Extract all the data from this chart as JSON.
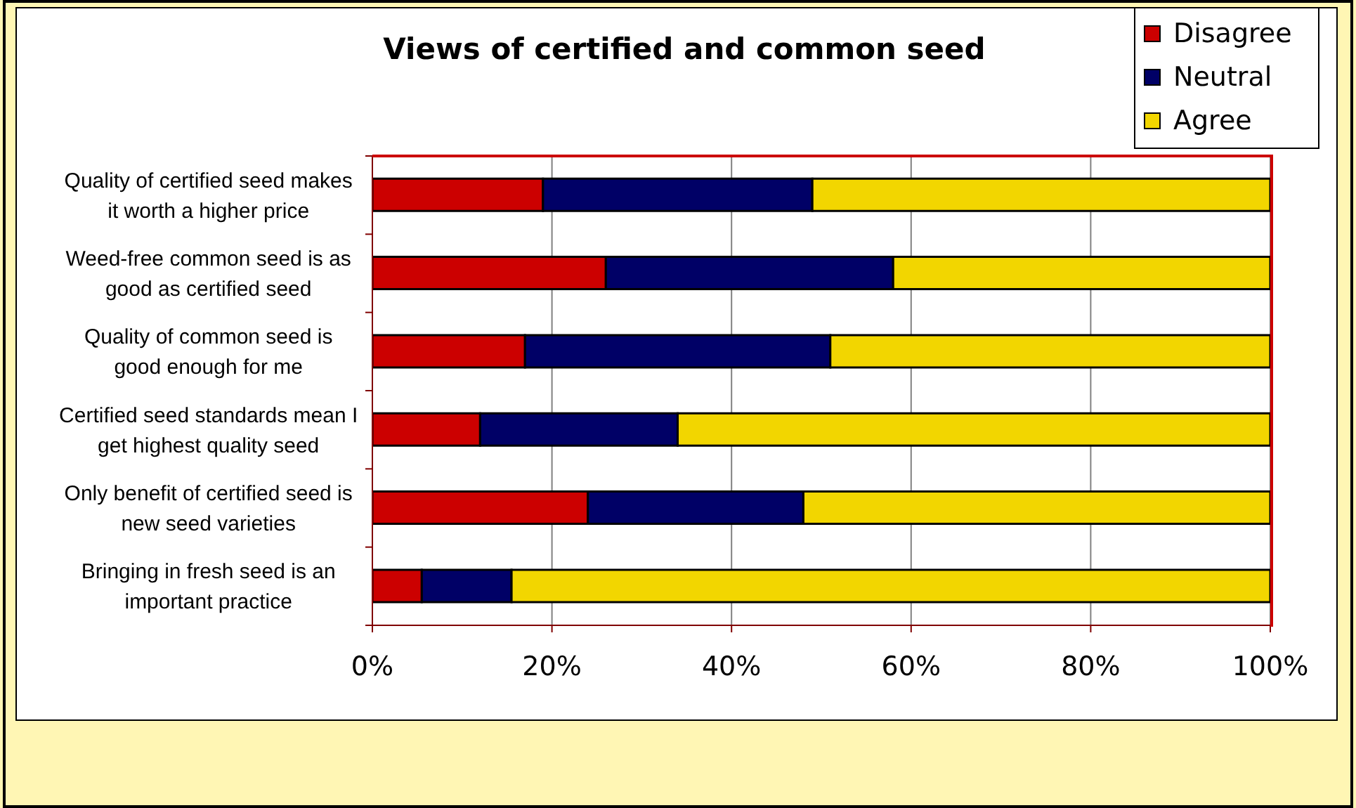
{
  "chart_data": {
    "type": "bar",
    "orientation": "horizontal",
    "stacked": true,
    "title": "Views of certified and common seed",
    "categories": [
      "Quality of certified seed makes it worth a higher price",
      "Weed-free common seed is as good as certified seed",
      "Quality of common seed is good enough for me",
      "Certified seed standards mean I get highest quality seed",
      "Only benefit of certified seed is new seed varieties",
      "Bringing in fresh seed is an important practice"
    ],
    "series": [
      {
        "name": "Disagree",
        "color": "#cc0000",
        "values": [
          19,
          26,
          17,
          12,
          24,
          5.5
        ]
      },
      {
        "name": "Neutral",
        "color": "#000066",
        "values": [
          30,
          32,
          34,
          22,
          24,
          10
        ]
      },
      {
        "name": "Agree",
        "color": "#f2d600",
        "values": [
          51,
          42,
          49,
          66,
          52,
          84.5
        ]
      }
    ],
    "xlim": [
      0,
      100
    ],
    "xticks": [
      {
        "value": 0,
        "label": "0%"
      },
      {
        "value": 20,
        "label": "20%"
      },
      {
        "value": 40,
        "label": "40%"
      },
      {
        "value": 60,
        "label": "60%"
      },
      {
        "value": 80,
        "label": "80%"
      },
      {
        "value": 100,
        "label": "100%"
      }
    ],
    "grid": "x",
    "legend": "top right"
  }
}
